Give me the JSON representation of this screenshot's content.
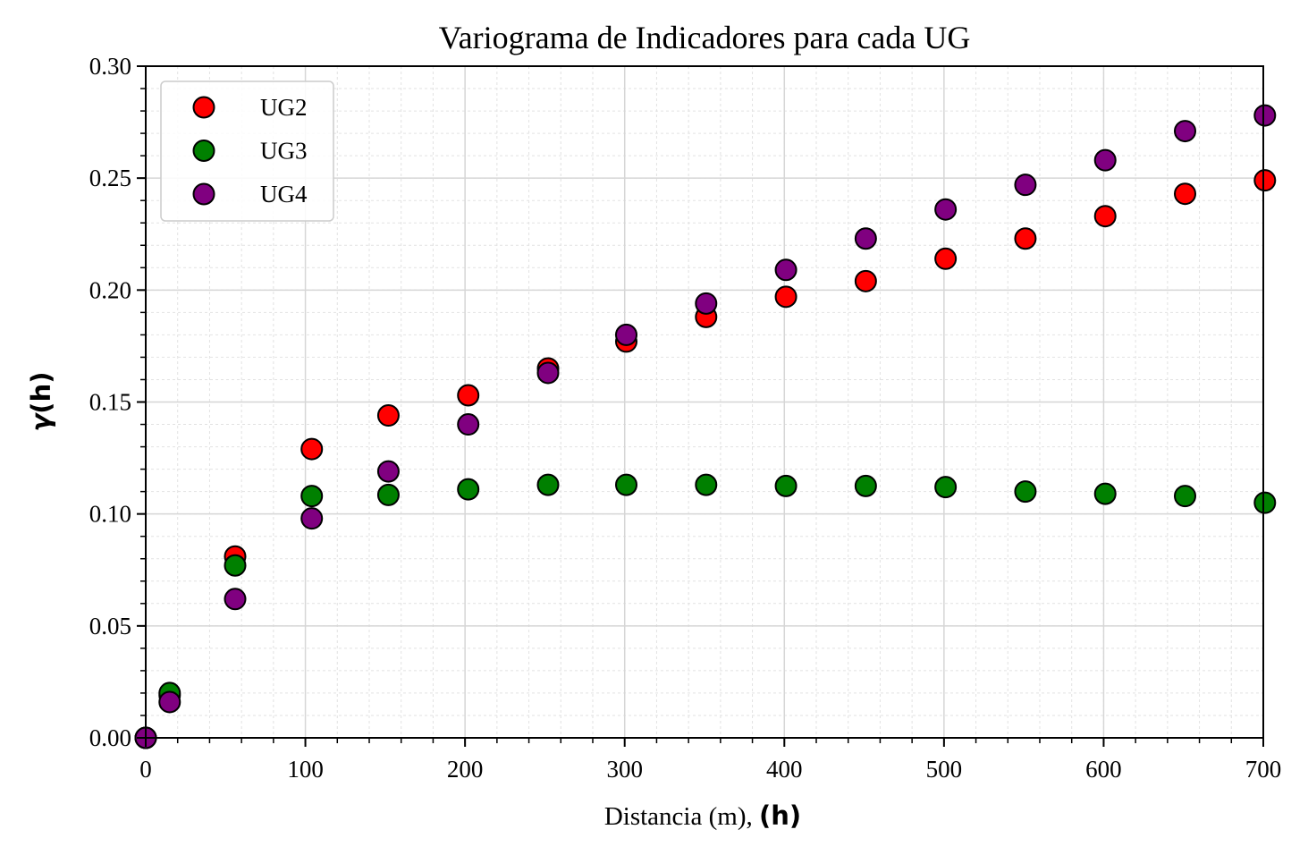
{
  "chart_data": {
    "type": "scatter",
    "title": "Variograma de Indicadores para cada UG",
    "xlabel_prefix": "Distancia (m), ",
    "xlabel_bold": "(h)",
    "ylabel_greek": "γ",
    "ylabel_bold": "(h)",
    "xlim": [
      0,
      700
    ],
    "ylim": [
      0,
      0.3
    ],
    "xticks": [
      "0",
      "100",
      "200",
      "300",
      "400",
      "500",
      "600",
      "700"
    ],
    "yticks": [
      "0.00",
      "0.05",
      "0.10",
      "0.15",
      "0.20",
      "0.25",
      "0.30"
    ],
    "grid": true,
    "legend_position": "upper-left",
    "series": [
      {
        "name": "UG2",
        "color": "#ff0000",
        "points": [
          [
            0,
            0.0
          ],
          [
            15,
            0.019
          ],
          [
            56,
            0.081
          ],
          [
            104,
            0.129
          ],
          [
            152,
            0.144
          ],
          [
            202,
            0.153
          ],
          [
            252,
            0.165
          ],
          [
            301,
            0.177
          ],
          [
            351,
            0.188
          ],
          [
            401,
            0.197
          ],
          [
            451,
            0.204
          ],
          [
            501,
            0.214
          ],
          [
            551,
            0.223
          ],
          [
            601,
            0.233
          ],
          [
            651,
            0.243
          ],
          [
            701,
            0.249
          ]
        ]
      },
      {
        "name": "UG3",
        "color": "#008000",
        "points": [
          [
            0,
            0.0
          ],
          [
            15,
            0.02
          ],
          [
            56,
            0.077
          ],
          [
            104,
            0.108
          ],
          [
            152,
            0.1085
          ],
          [
            202,
            0.111
          ],
          [
            252,
            0.113
          ],
          [
            301,
            0.113
          ],
          [
            351,
            0.113
          ],
          [
            401,
            0.1125
          ],
          [
            451,
            0.1125
          ],
          [
            501,
            0.112
          ],
          [
            551,
            0.11
          ],
          [
            601,
            0.109
          ],
          [
            651,
            0.108
          ],
          [
            701,
            0.105
          ]
        ]
      },
      {
        "name": "UG4",
        "color": "#800080",
        "points": [
          [
            0,
            0.0
          ],
          [
            15,
            0.016
          ],
          [
            56,
            0.062
          ],
          [
            104,
            0.098
          ],
          [
            152,
            0.119
          ],
          [
            202,
            0.14
          ],
          [
            252,
            0.163
          ],
          [
            301,
            0.18
          ],
          [
            351,
            0.194
          ],
          [
            401,
            0.209
          ],
          [
            451,
            0.223
          ],
          [
            501,
            0.236
          ],
          [
            551,
            0.247
          ],
          [
            601,
            0.258
          ],
          [
            651,
            0.271
          ],
          [
            701,
            0.278
          ]
        ]
      }
    ]
  }
}
